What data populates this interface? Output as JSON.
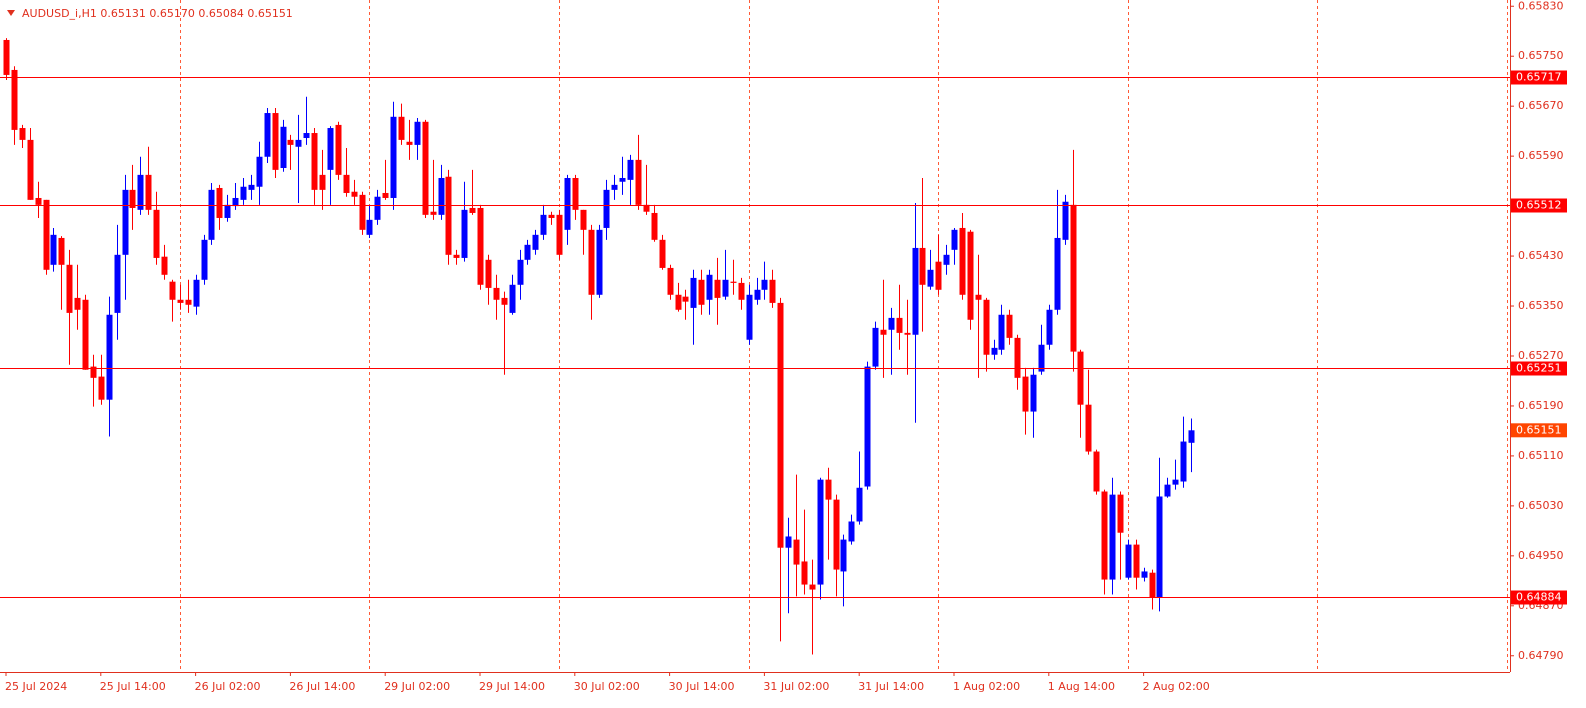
{
  "chart_data": {
    "type": "candlestick",
    "title": "AUDUSD_i,H1  0.65131 0.65170 0.65084 0.65151",
    "categories": [
      "25 Jul 2024",
      null,
      null,
      null,
      null,
      null,
      null,
      null,
      null,
      null,
      null,
      null,
      "25 Jul 14:00",
      null,
      null,
      null,
      null,
      null,
      null,
      null,
      null,
      null,
      null,
      null,
      "26 Jul 02:00",
      null,
      null,
      null,
      null,
      null,
      null,
      null,
      null,
      null,
      null,
      null,
      "26 Jul 14:00",
      null,
      null,
      null,
      null,
      null,
      null,
      null,
      null,
      null,
      null,
      null,
      "29 Jul 02:00",
      null,
      null,
      null,
      null,
      null,
      null,
      null,
      null,
      null,
      null,
      null,
      "29 Jul 14:00",
      null,
      null,
      null,
      null,
      null,
      null,
      null,
      null,
      null,
      null,
      null,
      "30 Jul 02:00",
      null,
      null,
      null,
      null,
      null,
      null,
      null,
      null,
      null,
      null,
      null,
      "30 Jul 14:00",
      null,
      null,
      null,
      null,
      null,
      null,
      null,
      null,
      null,
      null,
      null,
      "31 Jul 02:00",
      null,
      null,
      null,
      null,
      null,
      null,
      null,
      null,
      null,
      null,
      null,
      "31 Jul 14:00",
      null,
      null,
      null,
      null,
      null,
      null,
      null,
      null,
      null,
      null,
      null,
      "1 Aug 02:00",
      null,
      null,
      null,
      null,
      null,
      null,
      null,
      null,
      null,
      null,
      null,
      "1 Aug 14:00",
      null,
      null,
      null,
      null,
      null,
      null,
      null,
      null,
      null,
      null,
      null,
      "2 Aug 02:00",
      null,
      null,
      null,
      null,
      null,
      null
    ],
    "open": [
      0.65776,
      0.65728,
      0.65635,
      0.65616,
      0.65523,
      0.6552,
      0.65416,
      0.65459,
      0.65416,
      0.65363,
      0.6536,
      0.65253,
      0.65237,
      0.652,
      0.65339,
      0.65432,
      0.65536,
      0.65504,
      0.6556,
      0.65504,
      0.65429,
      0.65389,
      0.6536,
      0.6536,
      0.65349,
      0.65392,
      0.65456,
      0.65539,
      0.65491,
      0.6551,
      0.6552,
      0.65536,
      0.65541,
      0.65589,
      0.65659,
      0.65571,
      0.65616,
      0.65605,
      0.65619,
      0.65627,
      0.6556,
      0.65568,
      0.6564,
      0.6556,
      0.65533,
      0.65528,
      0.65464,
      0.65488,
      0.65531,
      0.65523,
      0.65653,
      0.65613,
      0.65608,
      0.65645,
      0.65501,
      0.65496,
      0.65557,
      0.65432,
      0.65427,
      0.65507,
      0.65507,
      0.65424,
      0.65379,
      0.65363,
      0.65339,
      0.65384,
      0.65424,
      0.6544,
      0.65464,
      0.65496,
      0.65496,
      0.65472,
      0.65555,
      0.65504,
      0.65472,
      0.65368,
      0.65475,
      0.65536,
      0.65549,
      0.65552,
      0.65584,
      0.65512,
      0.65499,
      0.65456,
      0.65411,
      0.65368,
      0.65365,
      0.65347,
      0.65392,
      0.6536,
      0.65392,
      0.65365,
      0.65389,
      0.65387,
      0.65296,
      0.6536,
      0.65376,
      0.65392,
      0.65355,
      0.64963,
      0.64976,
      0.64941,
      0.64904,
      0.64904,
      0.65072,
      0.6504,
      0.64925,
      0.64973,
      0.65005,
      0.65061,
      0.65253,
      0.65312,
      0.65312,
      0.65331,
      0.65307,
      0.65304,
      0.65443,
      0.65381,
      0.65421,
      0.65416,
      0.6544,
      0.65475,
      0.65469,
      0.65368,
      0.6536,
      0.65272,
      0.6528,
      0.65336,
      0.65299,
      0.65237,
      0.65181,
      0.65245,
      0.65288,
      0.65344,
      0.65456,
      0.65512,
      0.65277,
      0.65192,
      0.65117,
      0.65053,
      0.64912,
      0.65048,
      0.64915,
      0.64968,
      0.64915,
      0.64923,
      0.64883,
      0.65045,
      0.65064,
      0.65069,
      0.65131
    ],
    "high": [
      0.65779,
      0.65734,
      0.6564,
      0.65635,
      0.65549,
      0.6552,
      0.65475,
      0.65462,
      0.6544,
      0.65416,
      0.65368,
      0.65272,
      0.65272,
      0.65365,
      0.6548,
      0.6556,
      0.65576,
      0.65589,
      0.65605,
      0.65533,
      0.65448,
      0.65392,
      0.65384,
      0.65392,
      0.654,
      0.65464,
      0.65547,
      0.65544,
      0.65528,
      0.65547,
      0.65555,
      0.6556,
      0.65613,
      0.65667,
      0.65667,
      0.65648,
      0.65624,
      0.65656,
      0.65685,
      0.65635,
      0.656,
      0.65638,
      0.65645,
      0.65603,
      0.65552,
      0.65533,
      0.65512,
      0.65536,
      0.65584,
      0.65677,
      0.65674,
      0.65648,
      0.65651,
      0.65648,
      0.65584,
      0.65576,
      0.65568,
      0.6544,
      0.65549,
      0.65568,
      0.65512,
      0.65432,
      0.654,
      0.65373,
      0.654,
      0.6544,
      0.65456,
      0.65472,
      0.65512,
      0.65501,
      0.65504,
      0.6556,
      0.6556,
      0.65504,
      0.6548,
      0.6548,
      0.65552,
      0.6556,
      0.65589,
      0.65592,
      0.65624,
      0.65576,
      0.65512,
      0.65464,
      0.65416,
      0.65387,
      0.65376,
      0.65408,
      0.65408,
      0.65408,
      0.65427,
      0.6544,
      0.65424,
      0.65395,
      0.65384,
      0.65395,
      0.65421,
      0.65408,
      0.65363,
      0.65011,
      0.6508,
      0.65024,
      0.64944,
      0.65075,
      0.65091,
      0.65048,
      0.64984,
      0.65016,
      0.65117,
      0.65261,
      0.65325,
      0.65392,
      0.65347,
      0.65384,
      0.6536,
      0.65515,
      0.65555,
      0.6544,
      0.65464,
      0.65448,
      0.65475,
      0.65499,
      0.65472,
      0.65432,
      0.65363,
      0.65296,
      0.65352,
      0.65344,
      0.65304,
      0.65251,
      0.65251,
      0.6532,
      0.65352,
      0.65536,
      0.65528,
      0.656,
      0.6528,
      0.65248,
      0.6512,
      0.65056,
      0.65075,
      0.65053,
      0.64976,
      0.64976,
      0.64931,
      0.64928,
      0.65107,
      0.65075,
      0.65104,
      0.65173,
      0.6517
    ],
    "low": [
      0.65712,
      0.65608,
      0.65603,
      0.6552,
      0.65491,
      0.654,
      0.65405,
      0.65344,
      0.65256,
      0.65312,
      0.65248,
      0.65189,
      0.65192,
      0.65141,
      0.65296,
      0.6536,
      0.65472,
      0.65496,
      0.65496,
      0.65416,
      0.65392,
      0.65325,
      0.65344,
      0.65339,
      0.65336,
      0.65384,
      0.65448,
      0.65472,
      0.65485,
      0.65504,
      0.65512,
      0.6552,
      0.65512,
      0.65579,
      0.65555,
      0.65565,
      0.65568,
      0.65515,
      0.65608,
      0.65512,
      0.65504,
      0.65512,
      0.65552,
      0.65525,
      0.65512,
      0.65464,
      0.65459,
      0.6548,
      0.6552,
      0.65504,
      0.65608,
      0.65584,
      0.65584,
      0.65491,
      0.65488,
      0.65488,
      0.65416,
      0.65416,
      0.65421,
      0.65496,
      0.65376,
      0.65352,
      0.65328,
      0.6524,
      0.65336,
      0.6536,
      0.65416,
      0.65432,
      0.65456,
      0.6548,
      0.65424,
      0.65448,
      0.65488,
      0.65432,
      0.65328,
      0.65363,
      0.65456,
      0.6552,
      0.65528,
      0.65512,
      0.65504,
      0.65496,
      0.65453,
      0.65408,
      0.6536,
      0.65341,
      0.65328,
      0.65288,
      0.65336,
      0.65336,
      0.6532,
      0.6536,
      0.65368,
      0.65344,
      0.65288,
      0.65352,
      0.6536,
      0.65347,
      0.64813,
      0.64858,
      0.64885,
      0.64888,
      0.64792,
      0.6488,
      0.64944,
      0.64885,
      0.64869,
      0.64968,
      0.65,
      0.65056,
      0.65248,
      0.65235,
      0.6524,
      0.6528,
      0.6524,
      0.65163,
      0.65309,
      0.65376,
      0.65368,
      0.654,
      0.65416,
      0.6536,
      0.65312,
      0.65235,
      0.65245,
      0.65264,
      0.65272,
      0.65288,
      0.65216,
      0.65144,
      0.65139,
      0.6524,
      0.6528,
      0.65336,
      0.65448,
      0.65245,
      0.65139,
      0.65112,
      0.65048,
      0.64888,
      0.64888,
      0.64912,
      0.64912,
      0.64896,
      0.64909,
      0.64864,
      0.64861,
      0.65043,
      0.65056,
      0.65059,
      0.65084
    ],
    "close": [
      0.6572,
      0.65632,
      0.65616,
      0.6552,
      0.65512,
      0.65408,
      0.65464,
      0.65416,
      0.65339,
      0.65344,
      0.65248,
      0.65235,
      0.652,
      0.65336,
      0.65432,
      0.65536,
      0.65507,
      0.6556,
      0.65504,
      0.65427,
      0.654,
      0.6536,
      0.65355,
      0.65352,
      0.65392,
      0.65456,
      0.65536,
      0.65491,
      0.65512,
      0.65523,
      0.65541,
      0.65544,
      0.65589,
      0.65659,
      0.65568,
      0.65637,
      0.65608,
      0.65616,
      0.65627,
      0.65536,
      0.65536,
      0.65635,
      0.6556,
      0.65531,
      0.65525,
      0.65472,
      0.65488,
      0.65525,
      0.65523,
      0.65653,
      0.65616,
      0.65608,
      0.65645,
      0.65496,
      0.65496,
      0.65555,
      0.65432,
      0.65427,
      0.65504,
      0.65499,
      0.65384,
      0.65379,
      0.6536,
      0.65352,
      0.65384,
      0.65424,
      0.65448,
      0.65464,
      0.65496,
      0.65491,
      0.65432,
      0.65555,
      0.65504,
      0.65472,
      0.65368,
      0.65472,
      0.65536,
      0.65544,
      0.65555,
      0.65584,
      0.65512,
      0.65501,
      0.65456,
      0.65411,
      0.65368,
      0.65344,
      0.65357,
      0.65395,
      0.65352,
      0.654,
      0.65363,
      0.65392,
      0.65387,
      0.6536,
      0.65368,
      0.65376,
      0.65392,
      0.65355,
      0.64963,
      0.64981,
      0.64936,
      0.64904,
      0.64896,
      0.65072,
      0.6504,
      0.64928,
      0.64976,
      0.65005,
      0.65059,
      0.65253,
      0.65315,
      0.65304,
      0.65331,
      0.65307,
      0.65304,
      0.65443,
      0.65384,
      0.65408,
      0.65376,
      0.65432,
      0.65472,
      0.65368,
      0.65328,
      0.6536,
      0.65272,
      0.65283,
      0.65336,
      0.65299,
      0.65235,
      0.65181,
      0.6524,
      0.65288,
      0.65344,
      0.65459,
      0.65517,
      0.65277,
      0.65192,
      0.65117,
      0.65053,
      0.64912,
      0.65048,
      0.64987,
      0.64968,
      0.64915,
      0.64925,
      0.64883,
      0.65045,
      0.65064,
      0.65072,
      0.65133,
      0.65151
    ],
    "up_color": "#0000ff",
    "down_color": "#ff0000",
    "ylim": [
      0.64764,
      0.6584
    ],
    "yticks": [
      {
        "value": 0.6583,
        "label": "0.65830"
      },
      {
        "value": 0.6575,
        "label": "0.65750"
      },
      {
        "value": 0.6567,
        "label": "0.65670"
      },
      {
        "value": 0.6559,
        "label": "0.65590"
      },
      {
        "value": 0.6551,
        "label": "0.65510"
      },
      {
        "value": 0.6543,
        "label": "0.65430"
      },
      {
        "value": 0.6535,
        "label": "0.65350"
      },
      {
        "value": 0.6527,
        "label": "0.65270"
      },
      {
        "value": 0.6519,
        "label": "0.65190"
      },
      {
        "value": 0.6511,
        "label": "0.65110"
      },
      {
        "value": 0.6503,
        "label": "0.65030"
      },
      {
        "value": 0.6495,
        "label": "0.64950"
      },
      {
        "value": 0.6487,
        "label": "0.64870"
      },
      {
        "value": 0.6479,
        "label": "0.64790"
      }
    ],
    "levels": [
      0.65717,
      0.65512,
      0.65251,
      0.64884
    ],
    "level_color": "#ff0000",
    "current_price": 0.65151,
    "current_price_color": "#ff4500",
    "grid": true
  }
}
